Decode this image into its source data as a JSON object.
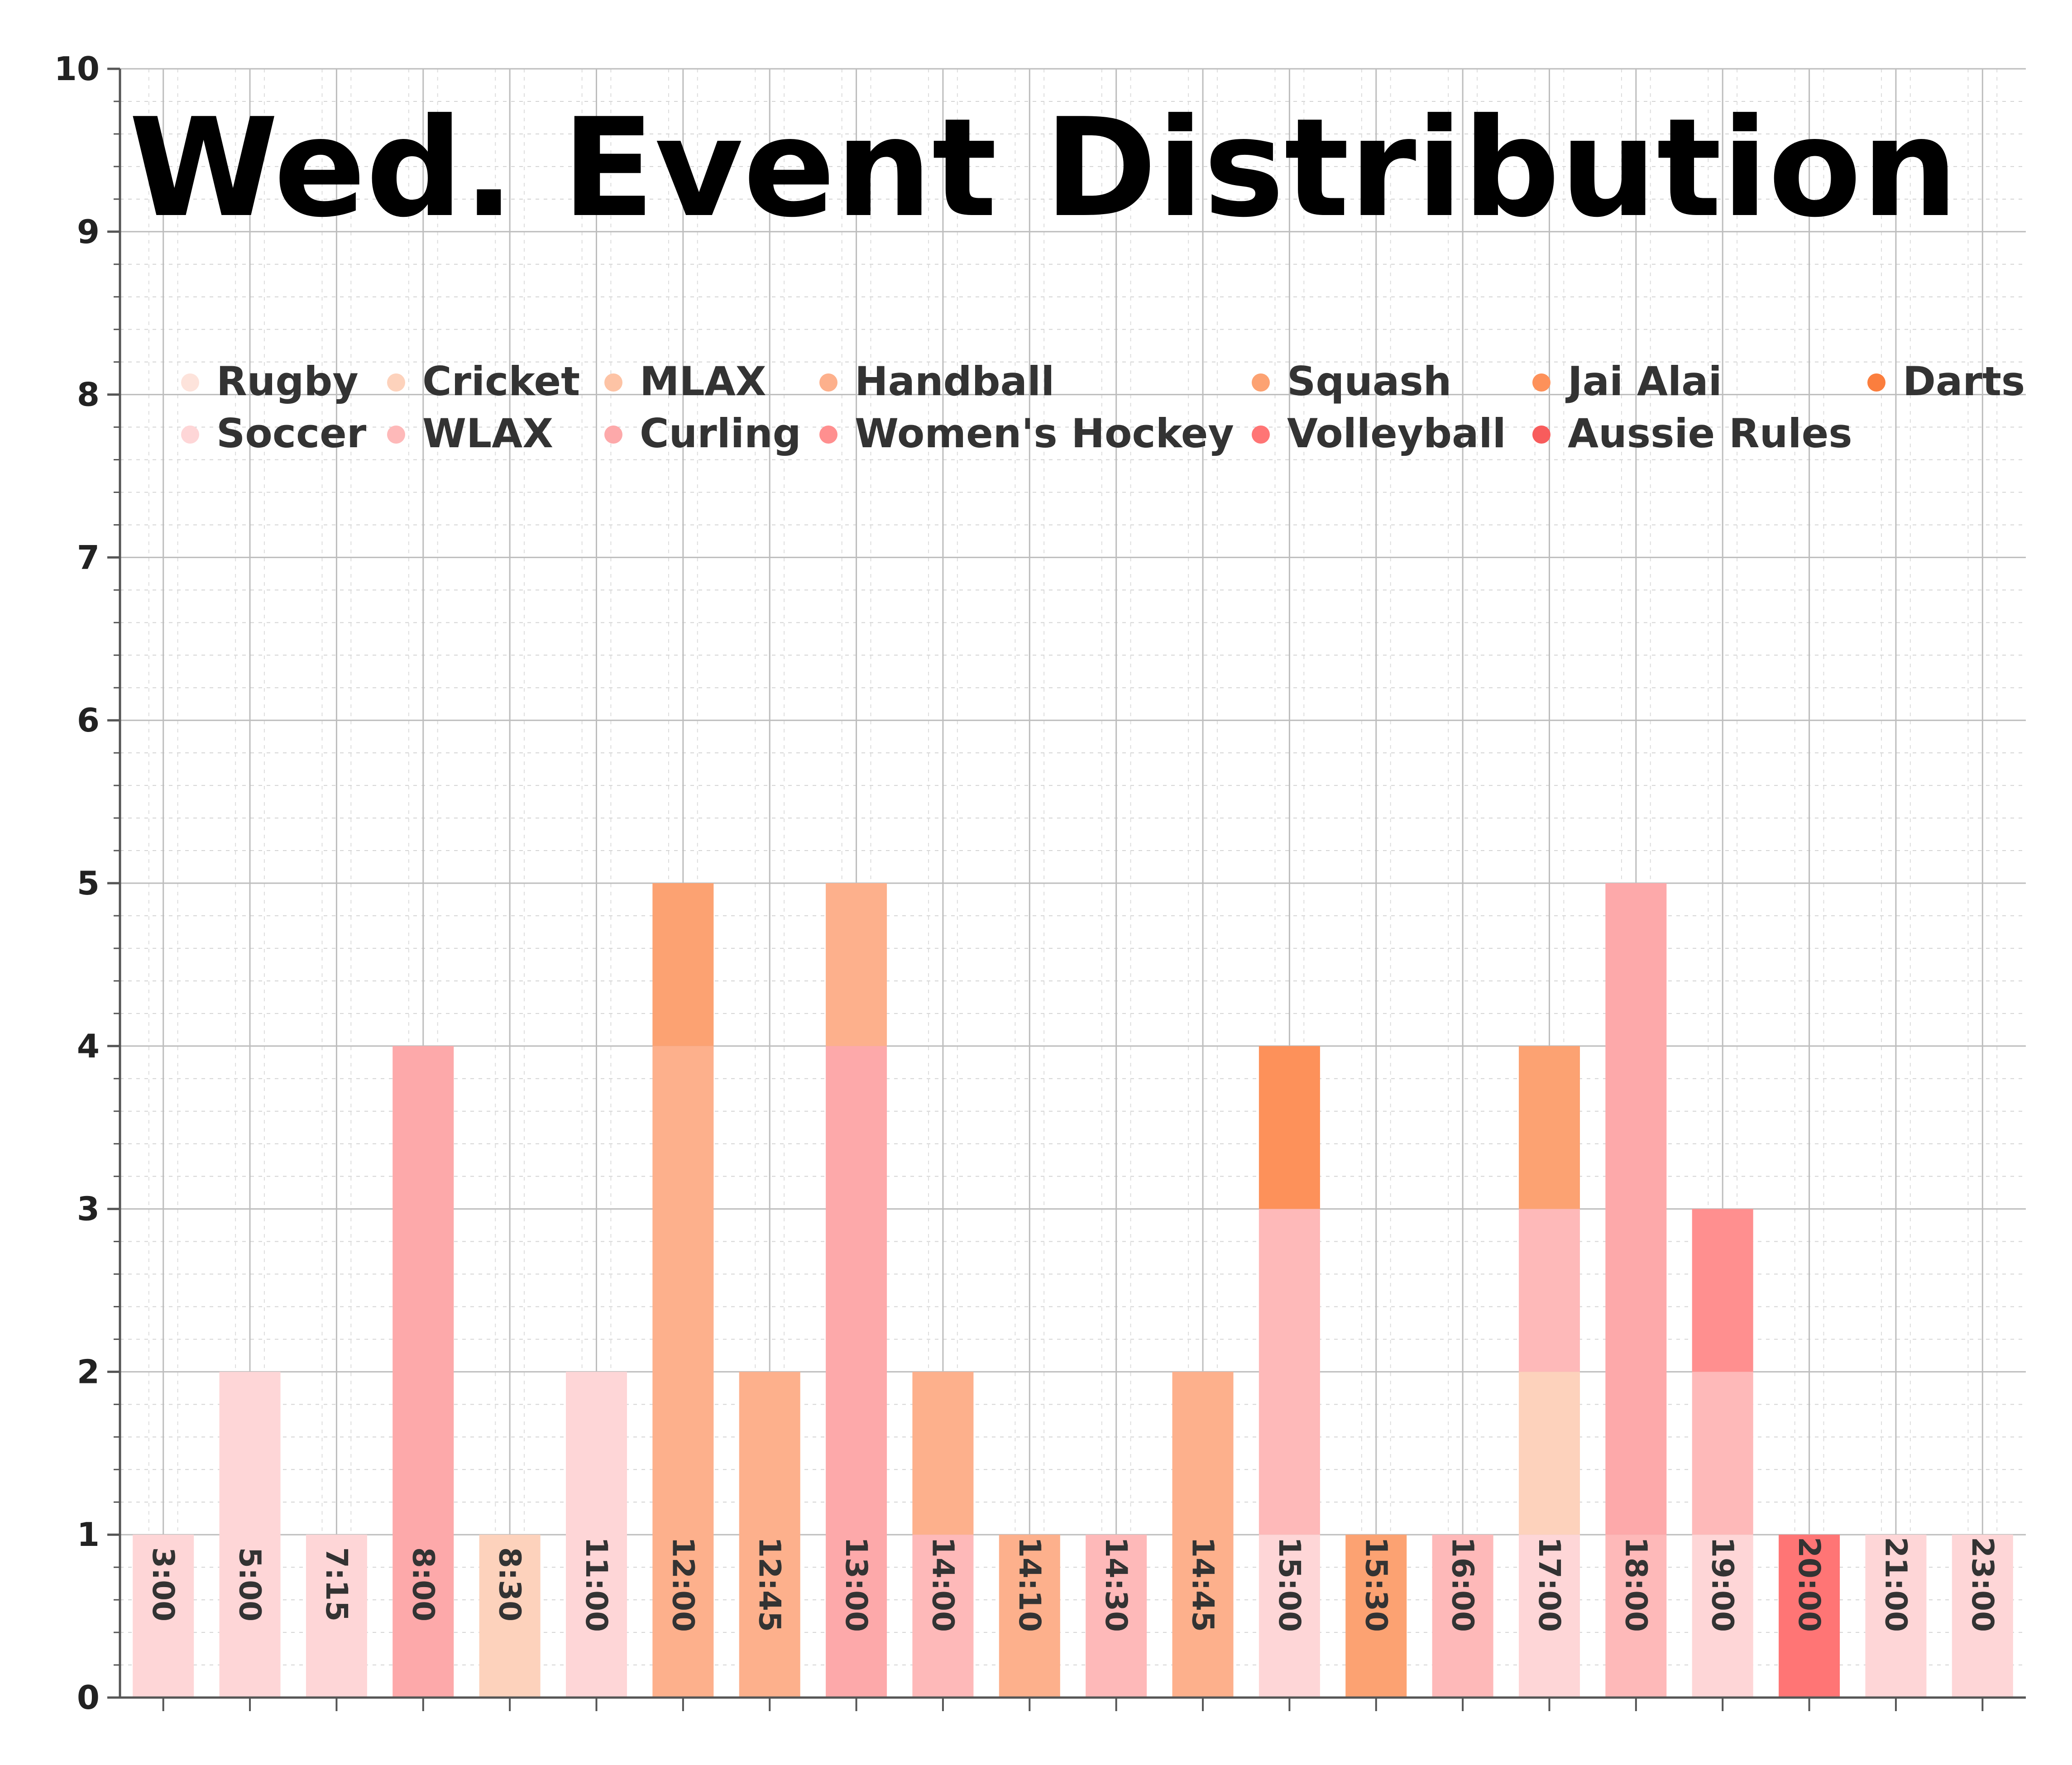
{
  "chart_data": {
    "type": "bar",
    "stacked": true,
    "title": "Wed. Event Distribution",
    "xlabel": "",
    "ylabel": "",
    "ylim": [
      0,
      10
    ],
    "yticks": [
      "0",
      "1",
      "2",
      "3",
      "4",
      "5",
      "6",
      "7",
      "8",
      "9",
      "10"
    ],
    "grid": true,
    "legend_position": "top",
    "categories": [
      "3:00",
      "5:00",
      "7:15",
      "8:00",
      "8:30",
      "11:00",
      "12:00",
      "12:45",
      "13:00",
      "14:00",
      "14:10",
      "14:30",
      "14:45",
      "15:00",
      "15:30",
      "16:00",
      "17:00",
      "18:00",
      "19:00",
      "20:00",
      "21:00",
      "23:00"
    ],
    "series": [
      {
        "name": "Rugby",
        "color": "#fde3db",
        "values": [
          0,
          0,
          0,
          0,
          0,
          0,
          0,
          0,
          0,
          0,
          0,
          0,
          0,
          0,
          0,
          0,
          0,
          0,
          0,
          0,
          0,
          0
        ]
      },
      {
        "name": "Soccer",
        "color": "#fed6d7",
        "values": [
          1,
          2,
          1,
          0,
          0,
          2,
          0,
          0,
          0,
          0,
          0,
          0,
          0,
          1,
          0,
          0,
          1,
          0,
          1,
          0,
          1,
          1
        ]
      },
      {
        "name": "Cricket",
        "color": "#fdd2bc",
        "values": [
          0,
          0,
          0,
          0,
          1,
          0,
          0,
          0,
          0,
          0,
          0,
          0,
          0,
          0,
          0,
          0,
          1,
          0,
          0,
          0,
          0,
          0
        ]
      },
      {
        "name": "WLAX",
        "color": "#feb9b9",
        "values": [
          0,
          0,
          0,
          0,
          0,
          0,
          0,
          0,
          0,
          1,
          0,
          1,
          0,
          2,
          0,
          1,
          1,
          1,
          1,
          0,
          0,
          0
        ]
      },
      {
        "name": "MLAX",
        "color": "#fdc3a5",
        "values": [
          0,
          0,
          0,
          0,
          0,
          0,
          0,
          0,
          0,
          0,
          0,
          0,
          0,
          0,
          0,
          0,
          0,
          0,
          0,
          0,
          0,
          0
        ]
      },
      {
        "name": "Curling",
        "color": "#fda9aa",
        "values": [
          0,
          0,
          0,
          4,
          0,
          0,
          0,
          0,
          4,
          0,
          0,
          0,
          0,
          0,
          0,
          0,
          0,
          4,
          0,
          0,
          0,
          0
        ]
      },
      {
        "name": "Handball",
        "color": "#fdb08c",
        "values": [
          0,
          0,
          0,
          0,
          0,
          0,
          4,
          2,
          1,
          1,
          1,
          0,
          2,
          0,
          0,
          0,
          0,
          0,
          0,
          0,
          0,
          0
        ]
      },
      {
        "name": "Women's Hockey",
        "color": "#ff8f8f",
        "values": [
          0,
          0,
          0,
          0,
          0,
          0,
          0,
          0,
          0,
          0,
          0,
          0,
          0,
          0,
          0,
          0,
          0,
          0,
          1,
          0,
          0,
          0
        ]
      },
      {
        "name": "Squash",
        "color": "#fca272",
        "values": [
          0,
          0,
          0,
          0,
          0,
          0,
          1,
          0,
          0,
          0,
          0,
          0,
          0,
          0,
          1,
          0,
          1,
          0,
          0,
          0,
          0,
          0
        ]
      },
      {
        "name": "Volleyball",
        "color": "#ff7575",
        "values": [
          0,
          0,
          0,
          0,
          0,
          0,
          0,
          0,
          0,
          0,
          0,
          0,
          0,
          0,
          0,
          0,
          0,
          0,
          0,
          1,
          0,
          0
        ]
      },
      {
        "name": "Jai Alai",
        "color": "#fd915a",
        "values": [
          0,
          0,
          0,
          0,
          0,
          0,
          0,
          0,
          0,
          0,
          0,
          0,
          0,
          1,
          0,
          0,
          0,
          0,
          0,
          0,
          0,
          0
        ]
      },
      {
        "name": "Aussie Rules",
        "color": "#f85c5c",
        "values": [
          0,
          0,
          0,
          0,
          0,
          0,
          0,
          0,
          0,
          0,
          0,
          0,
          0,
          0,
          0,
          0,
          0,
          0,
          0,
          0,
          0,
          0
        ]
      },
      {
        "name": "Darts",
        "color": "#fb7e3e",
        "values": [
          0,
          0,
          0,
          0,
          0,
          0,
          0,
          0,
          0,
          0,
          0,
          0,
          0,
          0,
          0,
          0,
          0,
          0,
          0,
          0,
          0,
          0
        ]
      }
    ]
  }
}
